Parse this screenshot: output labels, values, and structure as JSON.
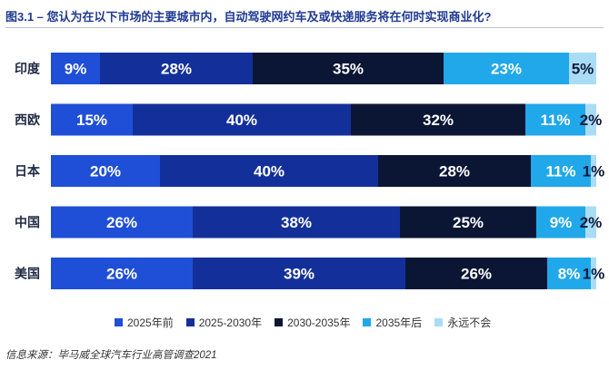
{
  "title": "图3.1 – 您认为在以下市场的主要城市内，自动驾驶网约车及或快递服务将在何时实现商业化?",
  "source": "信息来源：毕马威全球汽车行业高管调查2021",
  "chart_data": {
    "type": "bar",
    "orientation": "horizontal",
    "stacked": true,
    "unit": "%",
    "categories": [
      "印度",
      "西欧",
      "日本",
      "中国",
      "美国"
    ],
    "series": [
      {
        "name": "2025年前",
        "color": "#1f4fd6",
        "values": [
          9,
          15,
          20,
          26,
          26
        ]
      },
      {
        "name": "2025-2030年",
        "color": "#13309a",
        "values": [
          28,
          40,
          40,
          38,
          39
        ]
      },
      {
        "name": "2030-2035年",
        "color": "#0b1635",
        "values": [
          35,
          32,
          28,
          25,
          26
        ]
      },
      {
        "name": "2035年后",
        "color": "#20a8ea",
        "values": [
          23,
          11,
          11,
          9,
          8
        ]
      },
      {
        "name": "永远不会",
        "color": "#a9dcf5",
        "values": [
          5,
          2,
          1,
          2,
          1
        ]
      }
    ],
    "labels": [
      [
        "9%",
        "28%",
        "35%",
        "23%",
        "5%"
      ],
      [
        "15%",
        "40%",
        "32%",
        "11%",
        "2%"
      ],
      [
        "20%",
        "40%",
        "28%",
        "11%",
        "1%"
      ],
      [
        "26%",
        "38%",
        "25%",
        "9%",
        "2%"
      ],
      [
        "26%",
        "39%",
        "26%",
        "8%",
        "1%"
      ]
    ]
  }
}
